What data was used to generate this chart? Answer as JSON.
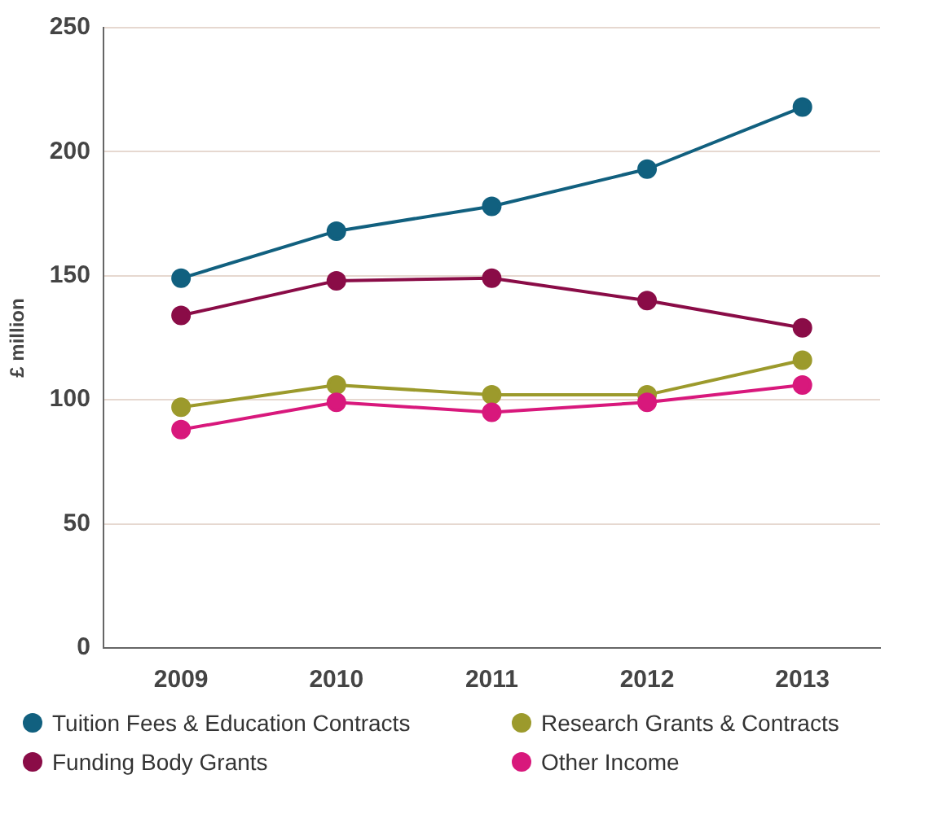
{
  "chart_data": {
    "type": "line",
    "ylabel": "£ million",
    "categories": [
      "2009",
      "2010",
      "2011",
      "2012",
      "2013"
    ],
    "ylim": [
      0,
      250
    ],
    "yticks": [
      0,
      50,
      100,
      150,
      200,
      250
    ],
    "grid": "y",
    "legend": "bottom",
    "marker": "circle",
    "line_style": "solid",
    "series": [
      {
        "name": "Tuition Fees & Education Contracts",
        "color": "#11607f",
        "values": [
          149,
          168,
          178,
          193,
          218
        ]
      },
      {
        "name": "Research Grants & Contracts",
        "color": "#9c9a2c",
        "values": [
          97,
          106,
          102,
          102,
          116
        ]
      },
      {
        "name": "Funding Body Grants",
        "color": "#8a0c47",
        "values": [
          134,
          148,
          149,
          140,
          129
        ]
      },
      {
        "name": "Other Income",
        "color": "#d8187c",
        "values": [
          88,
          99,
          95,
          99,
          106
        ]
      }
    ]
  }
}
